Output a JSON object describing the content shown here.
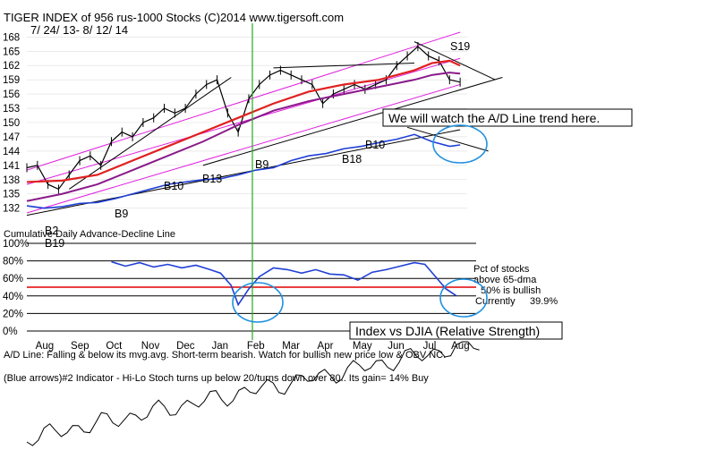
{
  "header": {
    "title": "TIGER INDEX of  956 rus-1000 Stocks  (C)2014   www.tigersoft.com",
    "date_range": "7/ 24/ 13-  8/ 12/ 14"
  },
  "colors": {
    "price_bars": "#000000",
    "moving_avg_red": "#e02020",
    "moving_avg_purple": "#8a1a8a",
    "ad_line_blue": "#1f3fd6",
    "channel_magenta": "#e020e0",
    "annotation_circle": "#2090e0",
    "vertical_marker_green": "#22aa22",
    "bullish_level_red": "#e00000",
    "relative_strength": "#000000"
  },
  "chart_data": [
    {
      "type": "line",
      "title": "TIGER INDEX of  956 rus-1000 Stocks",
      "y_ticks": [
        168,
        165,
        162,
        159,
        156,
        153,
        150,
        147,
        144,
        141,
        138,
        135,
        132
      ],
      "ylim": [
        131,
        169
      ],
      "months": [
        "Aug",
        "Sep",
        "Oct",
        "Nov",
        "Dec",
        "Jan",
        "Feb",
        "Mar",
        "Apr",
        "May",
        "Jun",
        "Jul",
        "Aug"
      ],
      "x_months": [
        0.5,
        1.5,
        2.5,
        3.5,
        4.5,
        5.5,
        6.5,
        7.5,
        8.5,
        9.5,
        10.5,
        11.5,
        12.3
      ],
      "series": [
        {
          "name": "Index",
          "x": [
            0,
            0.3,
            0.6,
            0.9,
            1.2,
            1.5,
            1.8,
            2.1,
            2.4,
            2.7,
            3.0,
            3.3,
            3.6,
            3.9,
            4.2,
            4.5,
            4.8,
            5.1,
            5.4,
            5.7,
            6.0,
            6.3,
            6.6,
            6.9,
            7.2,
            7.5,
            7.8,
            8.1,
            8.4,
            8.7,
            9.0,
            9.3,
            9.6,
            9.9,
            10.2,
            10.5,
            10.8,
            11.1,
            11.4,
            11.7,
            12.0,
            12.3
          ],
          "values": [
            140.5,
            141,
            137,
            136,
            139,
            142,
            143,
            141,
            146,
            148,
            147,
            150,
            151,
            153,
            152,
            153,
            156,
            158,
            159,
            152,
            148,
            155,
            158,
            160,
            161,
            160,
            159,
            158,
            154,
            156,
            157,
            158,
            157,
            158,
            159,
            162,
            164,
            166,
            164,
            163,
            159,
            158.5
          ]
        },
        {
          "name": "Moving Average (red)",
          "x": [
            0,
            1,
            2,
            3,
            4,
            5,
            6,
            7,
            8,
            9,
            10,
            11,
            11.5,
            12.0,
            12.3
          ],
          "values": [
            137.5,
            137.8,
            139,
            142,
            145,
            148,
            151,
            154,
            156.5,
            158,
            159,
            161,
            162.5,
            163,
            162
          ]
        },
        {
          "name": "Moving Average (purple)",
          "x": [
            0,
            1,
            2,
            3,
            4,
            5,
            6,
            7,
            8,
            9,
            10,
            11,
            11.5,
            12.0,
            12.3
          ],
          "values": [
            133.5,
            135,
            137,
            140,
            143,
            146,
            149.5,
            152.5,
            154.5,
            156,
            157.5,
            159,
            160,
            160.5,
            160.3
          ]
        },
        {
          "name": "A/D Line",
          "x": [
            0,
            0.5,
            1,
            1.5,
            2,
            2.5,
            3,
            3.5,
            4,
            4.5,
            5,
            5.5,
            6,
            6.5,
            7,
            7.5,
            8,
            8.5,
            9,
            9.5,
            10,
            10.5,
            11,
            11.5,
            12,
            12.3
          ],
          "values": [
            132.5,
            132,
            132.3,
            133,
            133.2,
            134,
            135,
            136,
            137,
            137.5,
            138,
            138.2,
            139,
            140,
            140.5,
            142,
            143,
            143.5,
            144.5,
            145,
            145.8,
            146.5,
            147.5,
            146,
            145,
            145.3
          ]
        }
      ],
      "annotations": [
        "S19",
        "B10",
        "B13",
        "B9",
        "B18",
        "B10",
        "B9",
        "B19",
        "B18",
        "B2"
      ]
    },
    {
      "type": "line",
      "title": "Cumulative Daily Advance-Decline Line",
      "y_ticks": [
        "100%",
        "80%",
        "60%",
        "40%",
        "20%",
        "0%"
      ],
      "ylim": [
        0,
        100
      ],
      "bullish_level": 50,
      "series": [
        {
          "name": "Pct of stocks above 65-dma",
          "x": [
            2.4,
            2.8,
            3.2,
            3.6,
            4.0,
            4.4,
            4.8,
            5.2,
            5.5,
            5.8,
            6.0,
            6.3,
            6.6,
            7.0,
            7.4,
            7.8,
            8.2,
            8.6,
            9.0,
            9.4,
            9.8,
            10.2,
            10.6,
            11.0,
            11.3,
            11.6,
            11.9,
            12.2
          ],
          "values": [
            79,
            74,
            78,
            73,
            76,
            72,
            75,
            70,
            66,
            52,
            30,
            48,
            62,
            72,
            70,
            66,
            70,
            65,
            64,
            58,
            67,
            70,
            74,
            78,
            76,
            62,
            48,
            40
          ]
        }
      ],
      "readout": {
        "label_line1": "Pct of stocks",
        "label_line2": "above 65-dma",
        "bullish_text": "50% is bullish",
        "current_label": "Currently",
        "current_value": "39.9%"
      }
    }
  ],
  "annotations": {
    "ad_trend_box": "We will watch the A/D Line trend here.",
    "rs_box": "Index vs DJIA (Relative Strength)",
    "ad_legend": "A/D Line: Falling & below its mvg.avg. Short-term bearish. Watch for bullish new price low & OBV NC.",
    "blue_arrows_legend": "(Blue arrows)#2 Indicator - Hi-Lo Stoch turns up below 20/turns down over 80.. Its gain= 14% Buy"
  },
  "signals": {
    "s19": "S19",
    "b10_a": "B10",
    "b13": "B13",
    "b9_a": "B9",
    "b18": "B18",
    "b10_b": "B10",
    "b9_b": "B9",
    "b19": "B19",
    "b18_b": "B18",
    "b2": "B2"
  }
}
